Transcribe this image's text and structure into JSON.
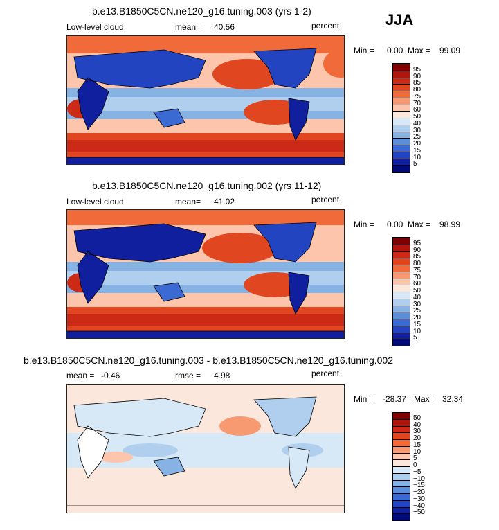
{
  "season": "JJA",
  "panels": [
    {
      "title": "b.e13.B1850C5CN.ne120_g16.tuning.003 (yrs 1-2)",
      "left_label": "Low-level cloud",
      "stat_label": "mean=",
      "stat_value": "40.56",
      "units": "percent",
      "min_label": "Min =",
      "min_value": "0.00",
      "max_label": "Max =",
      "max_value": "99.09"
    },
    {
      "title": "b.e13.B1850C5CN.ne120_g16.tuning.002 (yrs 11-12)",
      "left_label": "Low-level cloud",
      "stat_label": "mean=",
      "stat_value": "41.02",
      "units": "percent",
      "min_label": "Min =",
      "min_value": "0.00",
      "max_label": "Max =",
      "max_value": "98.99"
    },
    {
      "title": "b.e13.B1850C5CN.ne120_g16.tuning.003 - b.e13.B1850C5CN.ne120_g16.tuning.002",
      "left_label": "mean =",
      "left_value": "-0.46",
      "stat_label": "rmse =",
      "stat_value": "4.98",
      "units": "percent",
      "min_label": "Min =",
      "min_value": "-28.37",
      "max_label": "Max =",
      "max_value": "32.34"
    }
  ],
  "chart_data": [
    {
      "type": "heatmap",
      "title": "b.e13.B1850C5CN.ne120_g16.tuning.003 (yrs 1-2)",
      "variable": "Low-level cloud",
      "units": "percent",
      "mean": 40.56,
      "min": 0.0,
      "max": 99.09,
      "colorbar_levels": [
        "95",
        "90",
        "85",
        "80",
        "75",
        "70",
        "60",
        "50",
        "40",
        "30",
        "25",
        "20",
        "15",
        "10",
        "5"
      ],
      "colors": [
        "#7f0000",
        "#b0170c",
        "#cc2a17",
        "#e0461f",
        "#f06a3a",
        "#f79a72",
        "#fcc5ac",
        "#fbe7dc",
        "#d7e8f6",
        "#b0cfee",
        "#86b2e4",
        "#5b8fda",
        "#3a6ad2",
        "#2244c0",
        "#0f1f9e",
        "#000a78"
      ]
    },
    {
      "type": "heatmap",
      "title": "b.e13.B1850C5CN.ne120_g16.tuning.002 (yrs 11-12)",
      "variable": "Low-level cloud",
      "units": "percent",
      "mean": 41.02,
      "min": 0.0,
      "max": 98.99,
      "colorbar_levels": [
        "95",
        "90",
        "85",
        "80",
        "75",
        "70",
        "60",
        "50",
        "40",
        "30",
        "25",
        "20",
        "15",
        "10",
        "5"
      ],
      "colors": [
        "#7f0000",
        "#b0170c",
        "#cc2a17",
        "#e0461f",
        "#f06a3a",
        "#f79a72",
        "#fcc5ac",
        "#fbe7dc",
        "#d7e8f6",
        "#b0cfee",
        "#86b2e4",
        "#5b8fda",
        "#3a6ad2",
        "#2244c0",
        "#0f1f9e",
        "#000a78"
      ]
    },
    {
      "type": "heatmap",
      "title": "b.e13.B1850C5CN.ne120_g16.tuning.003 - b.e13.B1850C5CN.ne120_g16.tuning.002",
      "units": "percent",
      "mean": -0.46,
      "rmse": 4.98,
      "min": -28.37,
      "max": 32.34,
      "colorbar_levels": [
        "50",
        "40",
        "30",
        "20",
        "15",
        "10",
        "5",
        "0",
        "−5",
        "−10",
        "−15",
        "−20",
        "−30",
        "−40",
        "−50"
      ],
      "colors": [
        "#7f0000",
        "#b0170c",
        "#cc2a17",
        "#e0461f",
        "#f06a3a",
        "#f79a72",
        "#fcc5ac",
        "#fbe7dc",
        "#d7e8f6",
        "#b0cfee",
        "#86b2e4",
        "#5b8fda",
        "#3a6ad2",
        "#2244c0",
        "#0f1f9e",
        "#000a78"
      ]
    }
  ]
}
